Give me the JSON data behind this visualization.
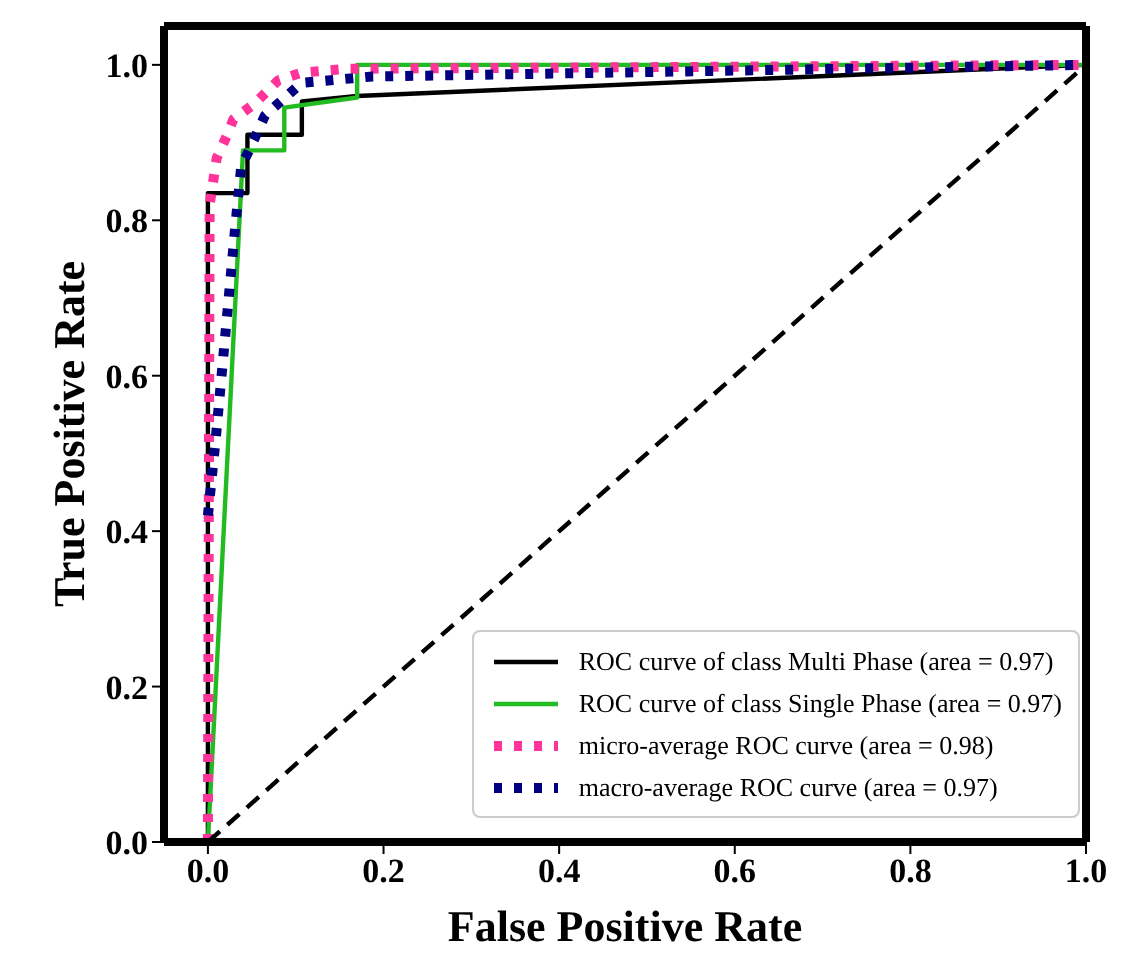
{
  "chart_data": {
    "type": "line",
    "xlabel": "False Positive Rate",
    "ylabel": "True Positive Rate",
    "xlim": [
      -0.05,
      1.0
    ],
    "ylim": [
      0,
      1.05
    ],
    "xticks": [
      {
        "value": 0,
        "label": "0.0"
      },
      0.2,
      0.4,
      0.6,
      0.8,
      {
        "value": 1,
        "label": "1.0"
      }
    ],
    "yticks": [
      {
        "value": 0,
        "label": "0.0"
      },
      0.2,
      0.4,
      0.6,
      0.8,
      {
        "value": 1,
        "label": "1.0"
      }
    ],
    "grid": false,
    "legend": "bottom right",
    "marker": "none",
    "series": [
      {
        "name": "ROC curve of class Multi Phase (area = 0.97)",
        "color": "#000000",
        "line_style": "solid",
        "x": [
          0,
          0,
          0.045,
          0.045,
          0.107,
          0.107,
          0.17,
          1
        ],
        "values": [
          0,
          0.835,
          0.835,
          0.91,
          0.91,
          0.953,
          0.96,
          1
        ]
      },
      {
        "name": "ROC curve of class Single Phase (area = 0.97)",
        "color": "#22bb22",
        "line_style": "solid",
        "x": [
          0,
          0.04,
          0.087,
          0.087,
          0.17,
          0.17,
          1
        ],
        "values": [
          0,
          0.89,
          0.89,
          0.945,
          0.958,
          1,
          1
        ]
      },
      {
        "name": "micro-average ROC curve (area = 0.98)",
        "color": "#ff3399",
        "line_style": "dotted",
        "x": [
          0,
          0.002,
          0.01,
          0.022,
          0.029,
          0.053,
          0.08,
          0.107,
          0.16,
          1
        ],
        "values": [
          0,
          0.82,
          0.88,
          0.91,
          0.93,
          0.95,
          0.98,
          0.99,
          0.995,
          1
        ]
      },
      {
        "name": "macro-average ROC curve (area = 0.97)",
        "color": "#000080",
        "line_style": "dotted",
        "x": [
          0,
          0.009,
          0.031,
          0.038,
          0.047,
          0.065,
          0.107,
          0.187,
          1
        ],
        "values": [
          0.42,
          0.52,
          0.79,
          0.87,
          0.89,
          0.935,
          0.977,
          0.985,
          1
        ]
      },
      {
        "color": "#000000",
        "line_style": "dashed",
        "x": [
          0,
          1
        ],
        "values": [
          0,
          1
        ]
      }
    ]
  }
}
